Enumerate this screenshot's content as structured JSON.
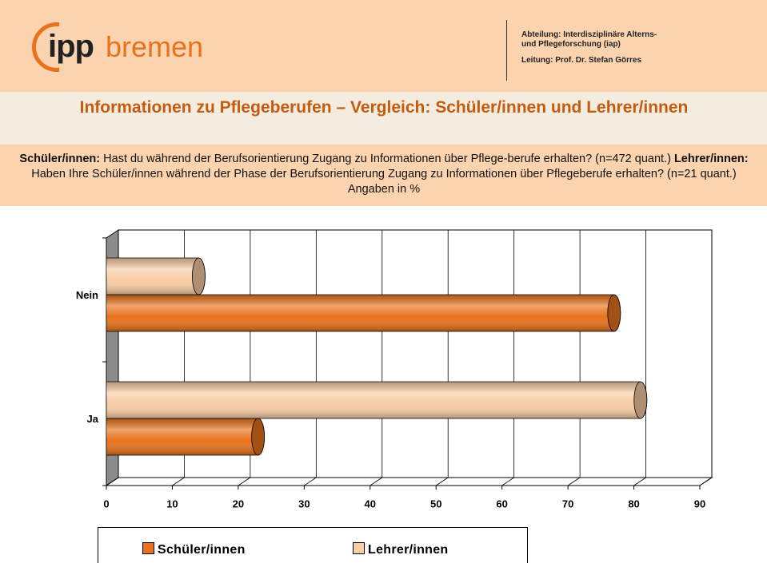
{
  "header": {
    "logo": {
      "ipp": "ipp",
      "bremen": "bremen"
    },
    "department": [
      "Abteilung: Interdisziplinäre Alterns-",
      "und Pflegeforschung (iap)"
    ],
    "lead": "Leitung: Prof. Dr. Stefan Görres"
  },
  "subtitle": [
    {
      "text": "Schüler/innen:",
      "bold": true
    },
    {
      "text": " Hast du während der Berufsorientierung Zugang zu Informationen über Pflege-berufe erhalten? (n=472 quant.) ",
      "bold": false
    },
    {
      "text": "Lehrer/innen:",
      "bold": true
    },
    {
      "text": " Haben Ihre Schüler/innen während der Phase der Berufsorientierung Zugang zu Informationen über Pflegeberufe erhalten? (n=21 quant.) Angaben in %",
      "bold": false
    }
  ],
  "chart_data": {
    "type": "bar",
    "orientation": "horizontal",
    "title": "Informationen zu Pflegeberufen – Vergleich: Schüler/innen und Lehrer/innen",
    "categories": [
      "Ja",
      "Nein"
    ],
    "series": [
      {
        "name": "Schüler/innen",
        "color": "#e8731c",
        "values": [
          23,
          77
        ]
      },
      {
        "name": "Lehrer/innen",
        "color": "#f9cda5",
        "values": [
          81,
          14
        ]
      }
    ],
    "xlim": [
      0,
      90
    ],
    "xticks": [
      0,
      10,
      20,
      30,
      40,
      50,
      60,
      70,
      80,
      90
    ],
    "grid": true,
    "legend": "bottom"
  }
}
